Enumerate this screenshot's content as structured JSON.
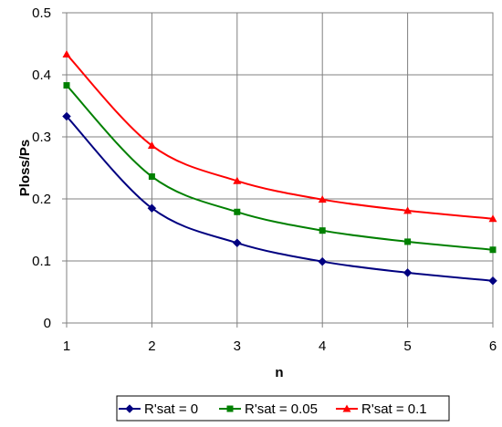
{
  "chart_data": {
    "type": "line",
    "xlabel": "n",
    "ylabel": "Ploss/Ps",
    "x": [
      1,
      2,
      3,
      4,
      5,
      6
    ],
    "xlim": [
      1,
      6
    ],
    "ylim": [
      0,
      0.5
    ],
    "x_ticks": [
      "1",
      "2",
      "3",
      "4",
      "5",
      "6"
    ],
    "y_ticks": [
      "0",
      "0.1",
      "0.2",
      "0.3",
      "0.4",
      "0.5"
    ],
    "grid": true,
    "legend_position": "bottom",
    "series": [
      {
        "name": "R'sat = 0",
        "color": "#000080",
        "marker": "diamond",
        "values": [
          0.333,
          0.185,
          0.129,
          0.099,
          0.081,
          0.068
        ]
      },
      {
        "name": "R'sat = 0.05",
        "color": "#008000",
        "marker": "square",
        "values": [
          0.383,
          0.236,
          0.179,
          0.149,
          0.131,
          0.118
        ]
      },
      {
        "name": "R'sat = 0.1",
        "color": "#ff0000",
        "marker": "triangle",
        "values": [
          0.433,
          0.286,
          0.229,
          0.199,
          0.181,
          0.168
        ]
      }
    ]
  }
}
